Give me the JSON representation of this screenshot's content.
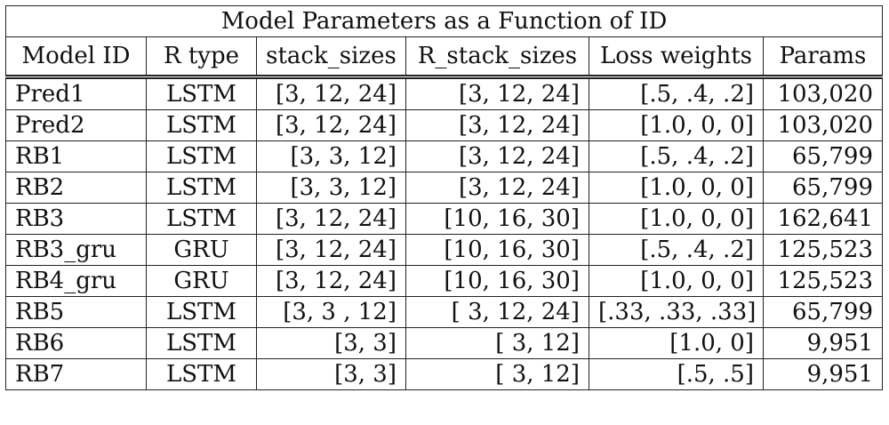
{
  "title": "Model Parameters as a Function of ID",
  "columns": [
    "Model ID",
    "R type",
    "stack_sizes",
    "R_stack_sizes",
    "Loss weights",
    "Params"
  ],
  "rows": [
    [
      "Pred1",
      "LSTM",
      "[3, 12, 24]",
      "[3, 12, 24]",
      "[.5, .4, .2]",
      "103,020"
    ],
    [
      "Pred2",
      "LSTM",
      "[3, 12, 24]",
      "[3, 12, 24]",
      "[1.0, 0, 0]",
      "103,020"
    ],
    [
      "RB1",
      "LSTM",
      "[3, 3, 12]",
      "[3, 12, 24]",
      "[.5, .4, .2]",
      "65,799"
    ],
    [
      "RB2",
      "LSTM",
      "[3, 3, 12]",
      "[3, 12, 24]",
      "[1.0, 0, 0]",
      "65,799"
    ],
    [
      "RB3",
      "LSTM",
      "[3, 12, 24]",
      "[10, 16, 30]",
      "[1.0, 0, 0]",
      "162,641"
    ],
    [
      "RB3_gru",
      "GRU",
      "[3, 12, 24]",
      "[10, 16, 30]",
      "[.5, .4, .2]",
      "125,523"
    ],
    [
      "RB4_gru",
      "GRU",
      "[3, 12, 24]",
      "[10, 16, 30]",
      "[1.0, 0, 0]",
      "125,523"
    ],
    [
      "RB5",
      "LSTM",
      "[3, 3 , 12]",
      "[ 3, 12, 24]",
      "[.33, .33, .33]",
      "65,799"
    ],
    [
      "RB6",
      "LSTM",
      "[3, 3]",
      "[ 3, 12]",
      "[1.0, 0]",
      "9,951"
    ],
    [
      "RB7",
      "LSTM",
      "[3, 3]",
      "[ 3, 12]",
      "[.5, .5]",
      "9,951"
    ]
  ]
}
